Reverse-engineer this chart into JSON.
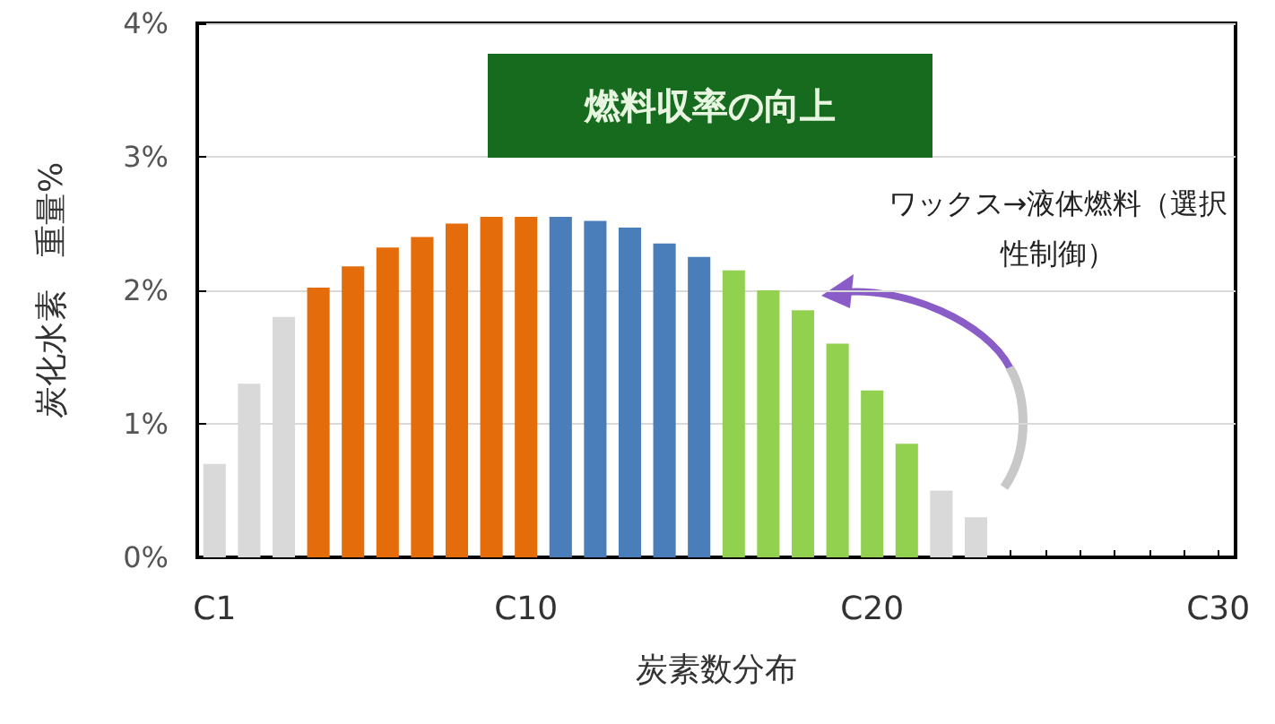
{
  "chart_data": {
    "type": "bar",
    "xlabel": "炭素数分布",
    "ylabel": "炭化水素　重量%",
    "categories": [
      "C1",
      null,
      null,
      null,
      null,
      null,
      null,
      null,
      null,
      "C10",
      null,
      null,
      null,
      null,
      null,
      null,
      null,
      null,
      null,
      "C20",
      null,
      null,
      null,
      null,
      null,
      null,
      null,
      null,
      null,
      "C30"
    ],
    "values": [
      0.7,
      1.3,
      1.8,
      2.02,
      2.18,
      2.32,
      2.4,
      2.5,
      2.55,
      2.55,
      2.55,
      2.52,
      2.47,
      2.35,
      2.25,
      2.15,
      2.0,
      1.85,
      1.6,
      1.25,
      0.85,
      0.5,
      0.3,
      null,
      null,
      null,
      null,
      null,
      null,
      null
    ],
    "colors": [
      "#d9d9d9",
      "#d9d9d9",
      "#d9d9d9",
      "#e46c0a",
      "#e46c0a",
      "#e46c0a",
      "#e46c0a",
      "#e46c0a",
      "#e46c0a",
      "#e46c0a",
      "#4a7ebb",
      "#4a7ebb",
      "#4a7ebb",
      "#4a7ebb",
      "#4a7ebb",
      "#92d050",
      "#92d050",
      "#92d050",
      "#92d050",
      "#92d050",
      "#92d050",
      "#d9d9d9",
      "#d9d9d9",
      "#d9d9d9",
      "#d9d9d9",
      "#d9d9d9",
      "#d9d9d9",
      "#d9d9d9",
      "#d9d9d9",
      "#d9d9d9"
    ],
    "ylim": [
      0,
      4
    ],
    "yticks": [
      {
        "value": 0,
        "label": "0%"
      },
      {
        "value": 1,
        "label": "1%"
      },
      {
        "value": 2,
        "label": "2%"
      },
      {
        "value": 3,
        "label": "3%"
      },
      {
        "value": 4,
        "label": "4%"
      }
    ],
    "grid": "y",
    "annotations": [
      "燃料収率の向上",
      "ワックス→液体燃料（選択性制御）"
    ]
  }
}
